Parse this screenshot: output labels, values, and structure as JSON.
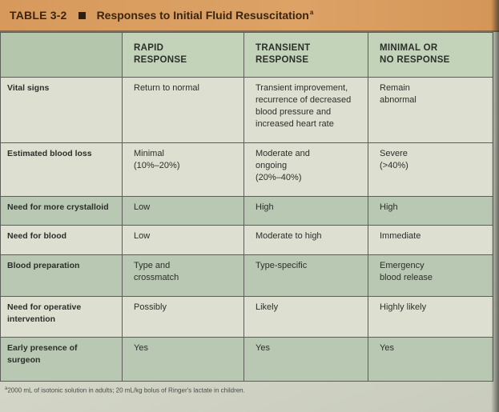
{
  "title_bar": {
    "table_number": "TABLE 3-2",
    "square_icon": "square-bullet-icon",
    "title": "Responses to Initial Fluid Resuscitation",
    "title_marker": "a"
  },
  "columns": {
    "blank": "",
    "rapid": [
      "RAPID",
      "RESPONSE"
    ],
    "transient": [
      "TRANSIENT",
      "RESPONSE"
    ],
    "minimal": [
      "MINIMAL OR",
      "NO RESPONSE"
    ]
  },
  "rows": [
    {
      "label": [
        "Vital signs"
      ],
      "rapid": [
        "Return to normal"
      ],
      "transient": [
        "Transient improvement,",
        "recurrence of decreased",
        "blood pressure and",
        "increased heart rate"
      ],
      "minimal": [
        "Remain",
        "abnormal"
      ]
    },
    {
      "label": [
        "Estimated blood loss"
      ],
      "rapid": [
        "Minimal",
        "(10%–20%)"
      ],
      "transient": [
        "Moderate and",
        "ongoing",
        "(20%–40%)"
      ],
      "minimal": [
        "Severe",
        "(>40%)"
      ]
    },
    {
      "label": [
        "Need for more crystalloid"
      ],
      "rapid": [
        "Low"
      ],
      "transient": [
        "High"
      ],
      "minimal": [
        "High"
      ]
    },
    {
      "label": [
        "Need for blood"
      ],
      "rapid": [
        "Low"
      ],
      "transient": [
        "Moderate to high"
      ],
      "minimal": [
        "Immediate"
      ]
    },
    {
      "label": [
        "Blood preparation"
      ],
      "rapid": [
        "Type and",
        "crossmatch"
      ],
      "transient": [
        "Type-specific"
      ],
      "minimal": [
        "Emergency",
        "blood release"
      ]
    },
    {
      "label": [
        "Need for operative",
        "intervention"
      ],
      "rapid": [
        "Possibly"
      ],
      "transient": [
        "Likely"
      ],
      "minimal": [
        "Highly likely"
      ]
    },
    {
      "label": [
        "Early presence of",
        "surgeon"
      ],
      "rapid": [
        "Yes"
      ],
      "transient": [
        "Yes"
      ],
      "minimal": [
        "Yes"
      ]
    }
  ],
  "footnote": {
    "marker": "a",
    "text": "2000 mL of isotonic solution in adults; 20 mL/kg bolus of Ringer's lactate in children."
  }
}
